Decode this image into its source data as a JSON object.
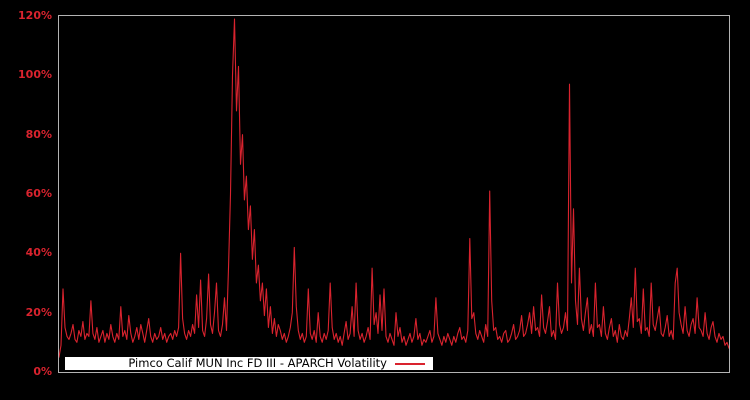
{
  "window": {
    "background": "#000000"
  },
  "colors": {
    "background": "#000000",
    "line": "#d9232e",
    "axis_label": "#d9232e",
    "plot_border": "#b3b3b3",
    "legend_bg": "#ffffff",
    "legend_text": "#000000"
  },
  "legend": {
    "label": "Pimco Calif MUN Inc FD III - APARCH Volatility"
  },
  "chart_data": {
    "type": "line",
    "title": "",
    "xlabel": "",
    "ylabel": "",
    "ylim": [
      0,
      120
    ],
    "yticks": [
      0,
      20,
      40,
      60,
      80,
      100,
      120
    ],
    "ytick_labels": [
      "0%",
      "20%",
      "40%",
      "60%",
      "80%",
      "100%",
      "120%"
    ],
    "xtick_labels": [],
    "grid": false,
    "legend_position": "bottom-inside",
    "series": [
      {
        "name": "Pimco Calif MUN Inc FD III - APARCH Volatility",
        "unit": "percent",
        "values": [
          5,
          9,
          28,
          15,
          12,
          11,
          13,
          16,
          11,
          10,
          14,
          12,
          17,
          11,
          13,
          12,
          24,
          13,
          11,
          15,
          10,
          12,
          14,
          10,
          13,
          11,
          16,
          12,
          10,
          13,
          11,
          22,
          12,
          14,
          11,
          19,
          13,
          10,
          12,
          15,
          11,
          16,
          13,
          10,
          14,
          18,
          12,
          10,
          13,
          11,
          12,
          15,
          11,
          13,
          10,
          12,
          13,
          11,
          14,
          12,
          15,
          40,
          18,
          13,
          11,
          14,
          12,
          16,
          13,
          26,
          15,
          31,
          14,
          12,
          18,
          33,
          16,
          13,
          20,
          30,
          14,
          12,
          16,
          25,
          14,
          35,
          60,
          100,
          119,
          88,
          103,
          70,
          80,
          58,
          66,
          48,
          56,
          38,
          48,
          30,
          36,
          24,
          30,
          19,
          28,
          15,
          22,
          13,
          18,
          12,
          16,
          14,
          11,
          13,
          10,
          12,
          15,
          20,
          42,
          22,
          14,
          11,
          13,
          10,
          12,
          28,
          13,
          11,
          14,
          10,
          20,
          12,
          10,
          13,
          11,
          14,
          30,
          15,
          11,
          13,
          10,
          12,
          9,
          13,
          17,
          11,
          13,
          22,
          12,
          30,
          14,
          11,
          13,
          10,
          12,
          15,
          11,
          35,
          16,
          20,
          13,
          26,
          14,
          28,
          12,
          10,
          13,
          11,
          9,
          20,
          12,
          15,
          10,
          12,
          9,
          11,
          13,
          10,
          12,
          18,
          11,
          13,
          9,
          11,
          10,
          12,
          14,
          10,
          12,
          25,
          13,
          11,
          9,
          12,
          10,
          13,
          11,
          9,
          12,
          10,
          13,
          15,
          11,
          12,
          10,
          14,
          45,
          18,
          20,
          13,
          11,
          14,
          12,
          10,
          16,
          12,
          61,
          24,
          14,
          15,
          11,
          12,
          10,
          13,
          14,
          10,
          11,
          13,
          16,
          11,
          12,
          14,
          19,
          12,
          13,
          16,
          20,
          13,
          22,
          14,
          15,
          12,
          26,
          15,
          13,
          17,
          22,
          12,
          14,
          11,
          30,
          16,
          13,
          15,
          20,
          14,
          97,
          30,
          55,
          24,
          16,
          35,
          18,
          14,
          20,
          25,
          13,
          16,
          12,
          30,
          15,
          16,
          12,
          22,
          13,
          11,
          15,
          18,
          12,
          14,
          10,
          16,
          12,
          11,
          14,
          12,
          18,
          25,
          15,
          35,
          17,
          18,
          13,
          28,
          14,
          15,
          12,
          30,
          16,
          14,
          18,
          22,
          13,
          12,
          15,
          19,
          12,
          14,
          11,
          30,
          35,
          20,
          16,
          13,
          22,
          14,
          12,
          16,
          18,
          13,
          25,
          15,
          14,
          12,
          20,
          13,
          11,
          15,
          17,
          12,
          10,
          13,
          11,
          12,
          9,
          10,
          8
        ]
      }
    ]
  }
}
